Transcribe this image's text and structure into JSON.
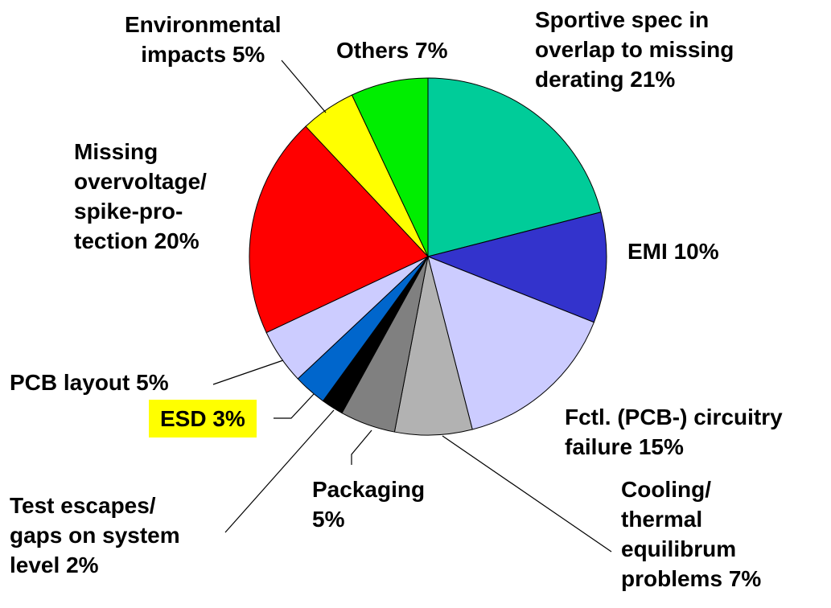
{
  "chart_data": {
    "type": "pie",
    "categories": [
      "Sportive spec in\noverlap to missing\nderating",
      "EMI",
      "Fctl. (PCB-) circuitry\nfailure",
      "Cooling/\nthermal\nequilibrum\nproblems",
      "Packaging",
      "Test escapes/\ngaps on system\nlevel",
      "ESD",
      "PCB layout",
      "Missing\novervoltage/\nspike-pro-\ntection",
      "Environmental\nimpacts",
      "Others"
    ],
    "values": [
      21,
      10,
      15,
      7,
      5,
      2,
      3,
      5,
      20,
      5,
      7
    ],
    "value_labels": [
      "21%",
      "10%",
      "15%",
      "7%",
      "5%",
      "2%",
      "3%",
      "5%",
      "20%",
      "5%",
      "7%"
    ],
    "colors": [
      "#00cc99",
      "#3333cc",
      "#ccccff",
      "#b2b2b2",
      "#808080",
      "#000000",
      "#0066cc",
      "#ccccff",
      "#ff0000",
      "#ffff00",
      "#00ee00"
    ]
  }
}
